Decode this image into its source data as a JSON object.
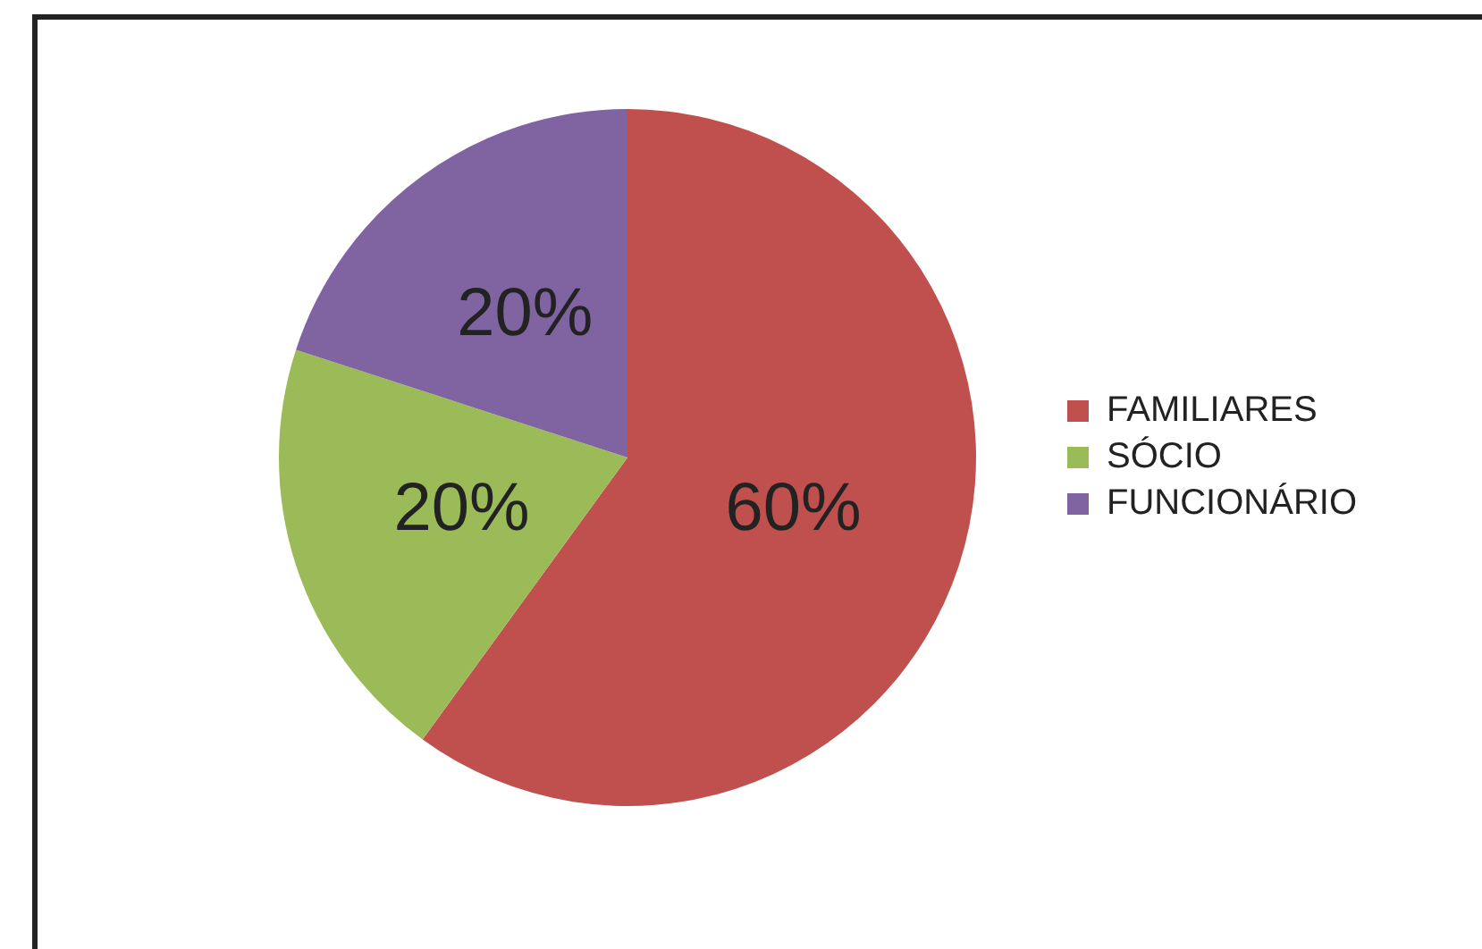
{
  "chart_data": {
    "type": "pie",
    "categories": [
      "FAMILIARES",
      "SÓCIO",
      "FUNCIONÁRIO"
    ],
    "values": [
      60,
      20,
      20
    ],
    "colors": [
      "#c0504d",
      "#9bbb59",
      "#8064a2"
    ],
    "value_labels": [
      "60%",
      "20%",
      "20%"
    ],
    "legend": "right"
  }
}
